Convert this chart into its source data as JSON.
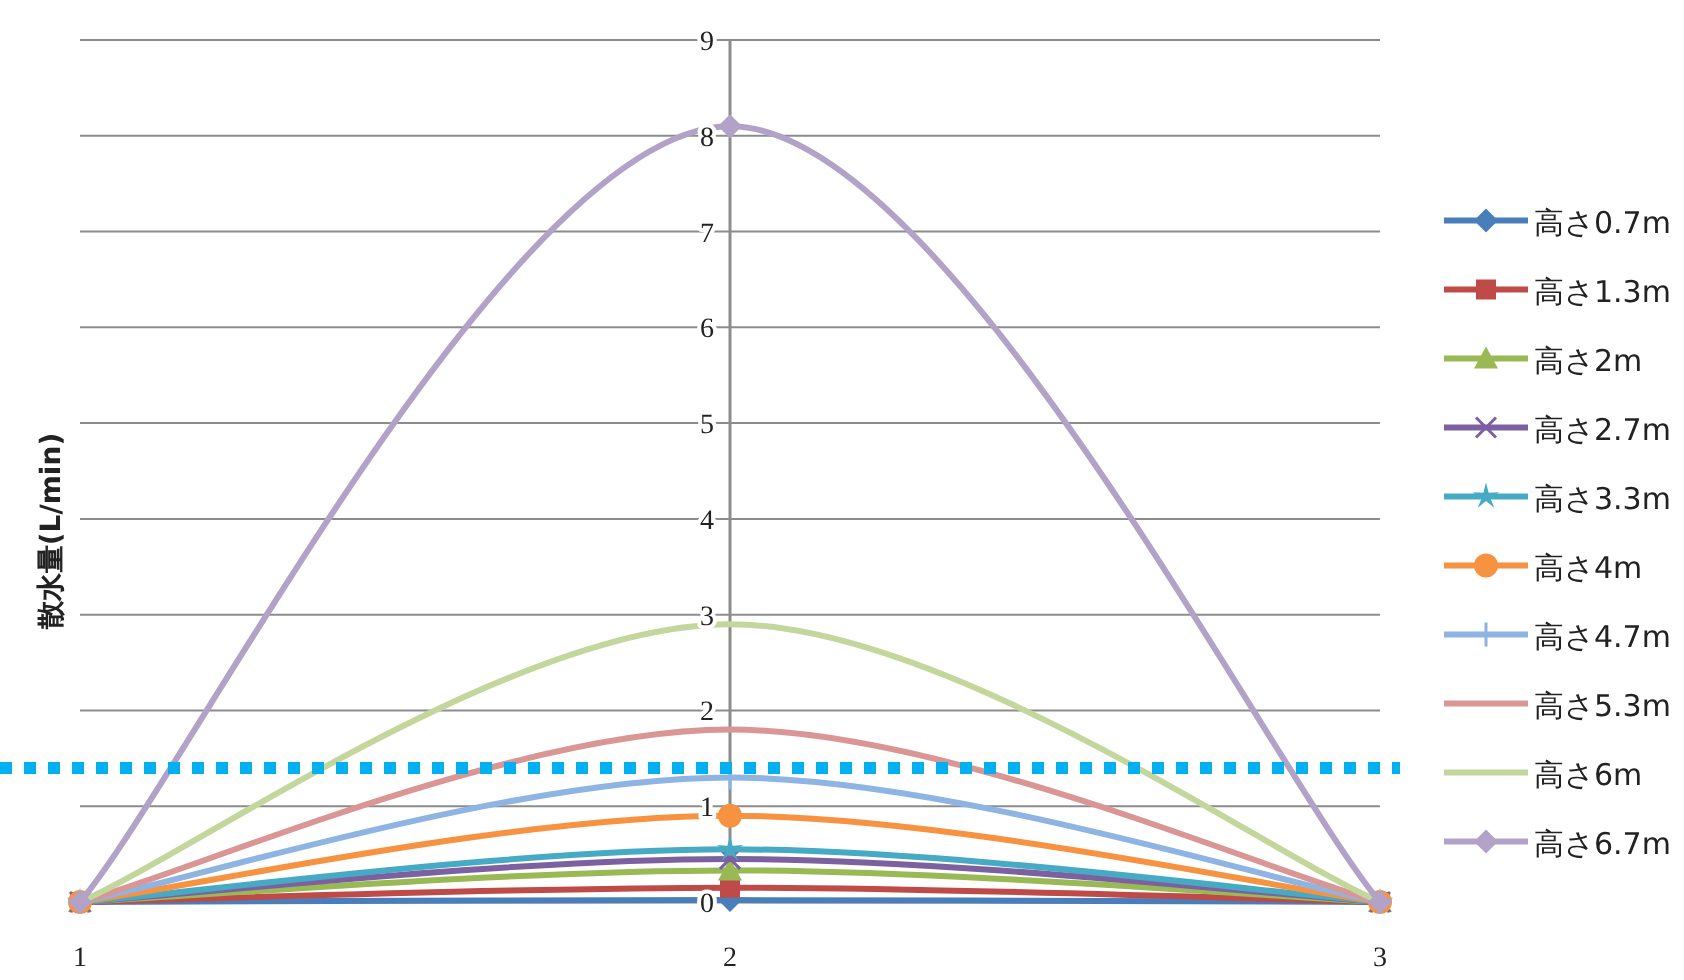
{
  "chart_data": {
    "type": "line",
    "ylabel": "散水量(L/min)",
    "x": [
      1,
      2,
      3
    ],
    "xlim": [
      1,
      3
    ],
    "xticks": [
      1,
      2,
      3
    ],
    "ylim": [
      0,
      9
    ],
    "yticks": [
      0,
      1,
      2,
      3,
      4,
      5,
      6,
      7,
      8,
      9
    ],
    "grid": "y",
    "legend": "right",
    "series": [
      {
        "name": "高さ0.7m",
        "color": "#4a7ebb",
        "marker": "diamond",
        "values": [
          0,
          0.02,
          0
        ]
      },
      {
        "name": "高さ1.3m",
        "color": "#be4b48",
        "marker": "square",
        "values": [
          0,
          0.15,
          0
        ]
      },
      {
        "name": "高さ2m",
        "color": "#98b954",
        "marker": "triangle",
        "values": [
          0,
          0.33,
          0
        ]
      },
      {
        "name": "高さ2.7m",
        "color": "#7d60a0",
        "marker": "x",
        "values": [
          0,
          0.45,
          0
        ]
      },
      {
        "name": "高さ3.3m",
        "color": "#46aac5",
        "marker": "star",
        "values": [
          0,
          0.55,
          0
        ]
      },
      {
        "name": "高さ4m",
        "color": "#f69240",
        "marker": "circle",
        "values": [
          0,
          0.9,
          0
        ]
      },
      {
        "name": "高さ4.7m",
        "color": "#8eb4e3",
        "marker": "cross",
        "values": [
          0,
          1.3,
          0
        ]
      },
      {
        "name": "高さ5.3m",
        "color": "#d99694",
        "marker": "none",
        "values": [
          0,
          1.8,
          0
        ]
      },
      {
        "name": "高さ6m",
        "color": "#c3d69b",
        "marker": "none",
        "values": [
          0,
          2.9,
          0
        ]
      },
      {
        "name": "高さ6.7m",
        "color": "#b3a2c7",
        "marker": "diamond",
        "values": [
          0,
          8.1,
          0
        ]
      }
    ],
    "ref_lines": [
      {
        "axis": "y",
        "value": 1.4,
        "color": "#00b0f0",
        "line_style": "dotted"
      }
    ]
  }
}
